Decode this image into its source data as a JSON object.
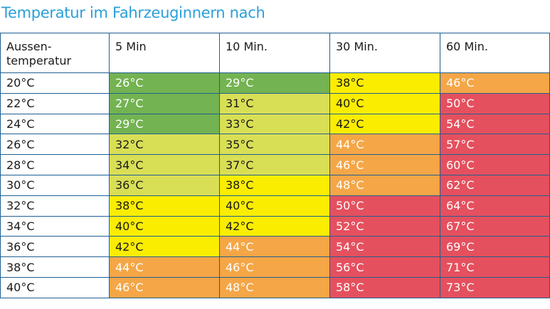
{
  "title": "Temperatur im Fahrzeuginnern nach",
  "colors": {
    "dgreen": "#73b351",
    "lgreen": "#d9df55",
    "yellow": "#fbed00",
    "orange": "#f5a646",
    "red": "#e5505e",
    "border": "#1f5f92",
    "title": "#2a9fd8"
  },
  "chart_data": {
    "type": "table",
    "title": "Temperatur im Fahrzeuginnern nach",
    "row_header": "Aussen-temperatur",
    "columns": [
      "5 Min",
      "10 Min.",
      "30 Min.",
      "60 Min."
    ],
    "rows": [
      {
        "label": "20°C",
        "values": [
          "26°C",
          "29°C",
          "38°C",
          "46°C"
        ],
        "colors": [
          "dgreen",
          "dgreen",
          "yellow",
          "orange"
        ]
      },
      {
        "label": "22°C",
        "values": [
          "27°C",
          "31°C",
          "40°C",
          "50°C"
        ],
        "colors": [
          "dgreen",
          "lgreen",
          "yellow",
          "red"
        ]
      },
      {
        "label": "24°C",
        "values": [
          "29°C",
          "33°C",
          "42°C",
          "54°C"
        ],
        "colors": [
          "dgreen",
          "lgreen",
          "yellow",
          "red"
        ]
      },
      {
        "label": "26°C",
        "values": [
          "32°C",
          "35°C",
          "44°C",
          "57°C"
        ],
        "colors": [
          "lgreen",
          "lgreen",
          "orange",
          "red"
        ]
      },
      {
        "label": "28°C",
        "values": [
          "34°C",
          "37°C",
          "46°C",
          "60°C"
        ],
        "colors": [
          "lgreen",
          "lgreen",
          "orange",
          "red"
        ]
      },
      {
        "label": "30°C",
        "values": [
          "36°C",
          "38°C",
          "48°C",
          "62°C"
        ],
        "colors": [
          "lgreen",
          "yellow",
          "orange",
          "red"
        ]
      },
      {
        "label": "32°C",
        "values": [
          "38°C",
          "40°C",
          "50°C",
          "64°C"
        ],
        "colors": [
          "yellow",
          "yellow",
          "red",
          "red"
        ]
      },
      {
        "label": "34°C",
        "values": [
          "40°C",
          "42°C",
          "52°C",
          "67°C"
        ],
        "colors": [
          "yellow",
          "yellow",
          "red",
          "red"
        ]
      },
      {
        "label": "36°C",
        "values": [
          "42°C",
          "44°C",
          "54°C",
          "69°C"
        ],
        "colors": [
          "yellow",
          "orange",
          "red",
          "red"
        ]
      },
      {
        "label": "38°C",
        "values": [
          "44°C",
          "46°C",
          "56°C",
          "71°C"
        ],
        "colors": [
          "orange",
          "orange",
          "red",
          "red"
        ]
      },
      {
        "label": "40°C",
        "values": [
          "46°C",
          "48°C",
          "58°C",
          "73°C"
        ],
        "colors": [
          "orange",
          "orange",
          "red",
          "red"
        ]
      }
    ]
  }
}
